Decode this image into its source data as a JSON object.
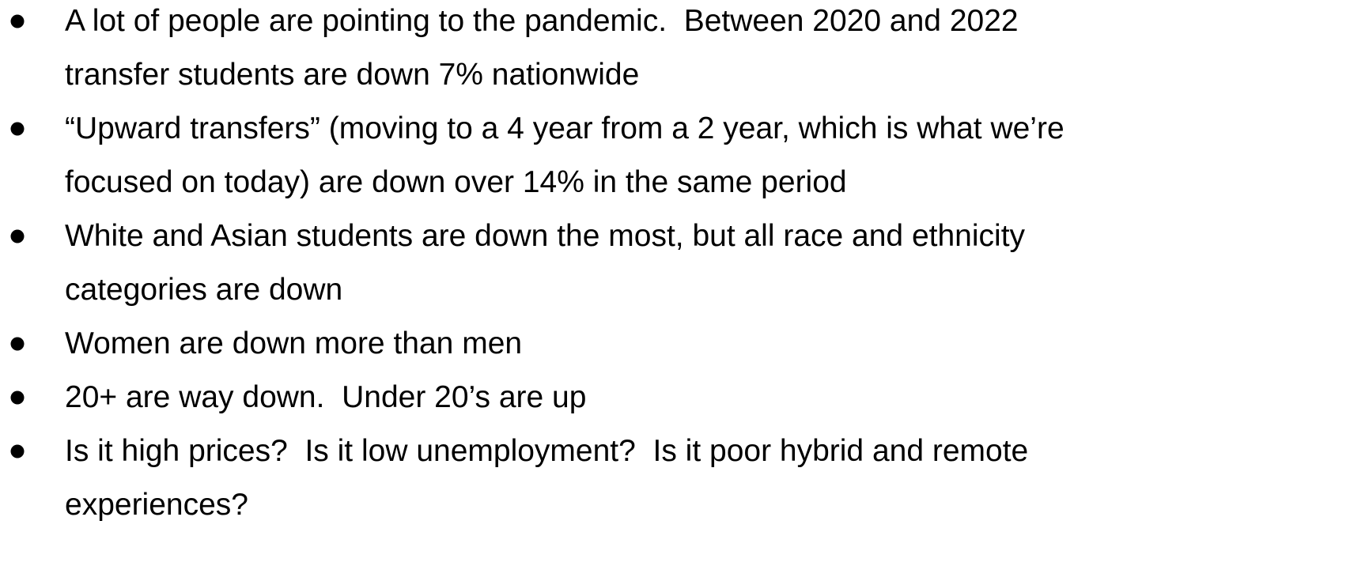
{
  "items": [
    {
      "lines": [
        "A lot of people are pointing to the pandemic.  Between 2020 and 2022",
        "transfer students are down 7% nationwide"
      ]
    },
    {
      "lines": [
        "“Upward transfers” (moving to a 4 year from a 2 year, which is what we’re",
        "focused on today) are down over 14% in the same period"
      ]
    },
    {
      "lines": [
        "White and Asian students are down the most, but all race and ethnicity",
        "categories are down"
      ]
    },
    {
      "lines": [
        "Women are down more than men"
      ]
    },
    {
      "lines": [
        "20+ are way down.  Under 20’s are up"
      ]
    },
    {
      "lines": [
        "Is it high prices?  Is it low unemployment?  Is it poor hybrid and remote",
        "experiences?"
      ]
    }
  ]
}
